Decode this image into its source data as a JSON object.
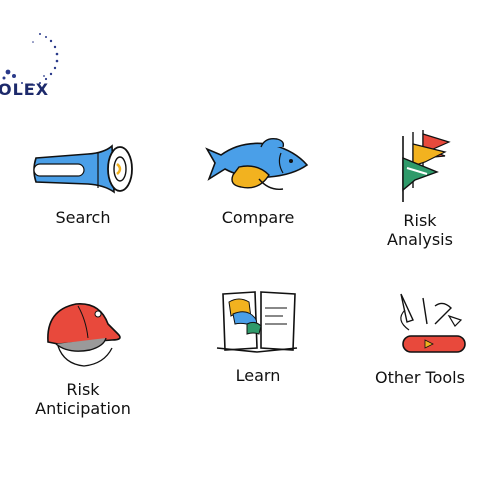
{
  "brand": {
    "logo_text": "OLEX",
    "accent": "#2a3a8a"
  },
  "tools": [
    {
      "label": "Search",
      "icon": "flashlight-icon"
    },
    {
      "label": "Compare",
      "icon": "fish-icon"
    },
    {
      "label": "Risk\nAnalysis",
      "icon": "flags-icon"
    },
    {
      "label": "Risk\nAnticipation",
      "icon": "helmet-icon"
    },
    {
      "label": "Learn",
      "icon": "book-icon"
    },
    {
      "label": "Other Tools",
      "icon": "multitool-icon"
    }
  ]
}
